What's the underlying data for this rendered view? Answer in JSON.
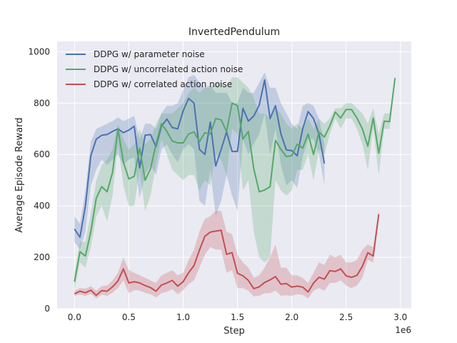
{
  "chart_data": {
    "type": "line",
    "title": "InvertedPendulum",
    "xlabel": "Step",
    "ylabel": "Average Episode Reward",
    "x_offset_label": "1e6",
    "xlim": [
      -0.16,
      3.1
    ],
    "ylim": [
      0,
      1040
    ],
    "x_ticks": [
      0.0,
      0.5,
      1.0,
      1.5,
      2.0,
      2.5,
      3.0
    ],
    "x_tick_labels": [
      "0.0",
      "0.5",
      "1.0",
      "1.5",
      "2.0",
      "2.5",
      "3.0"
    ],
    "y_ticks": [
      0,
      200,
      400,
      600,
      800,
      1000
    ],
    "y_tick_labels": [
      "0",
      "200",
      "400",
      "600",
      "800",
      "1000"
    ],
    "grid": true,
    "legend_position": "top-left",
    "colors": {
      "background": "#eaeaf2",
      "grid": "#ffffff",
      "blue": "#4c72b0",
      "green": "#55a868",
      "red": "#c44e52"
    },
    "series": [
      {
        "name": "DDPG w/ parameter noise",
        "color": "#4c72b0",
        "x": [
          0.0,
          0.05,
          0.1,
          0.15,
          0.2,
          0.25,
          0.3,
          0.35,
          0.4,
          0.45,
          0.5,
          0.55,
          0.6,
          0.65,
          0.7,
          0.75,
          0.8,
          0.85,
          0.9,
          0.95,
          1.0,
          1.05,
          1.1,
          1.15,
          1.2,
          1.25,
          1.3,
          1.35,
          1.4,
          1.45,
          1.5,
          1.55,
          1.6,
          1.65,
          1.7,
          1.75,
          1.8,
          1.85,
          1.9,
          1.95,
          2.0,
          2.05,
          2.1,
          2.15,
          2.2,
          2.25,
          2.3
        ],
        "y": [
          310,
          278,
          400,
          595,
          660,
          675,
          678,
          690,
          700,
          685,
          695,
          710,
          548,
          675,
          678,
          630,
          710,
          738,
          705,
          700,
          770,
          818,
          800,
          620,
          600,
          726,
          555,
          620,
          688,
          612,
          612,
          780,
          730,
          750,
          792,
          890,
          740,
          790,
          680,
          618,
          615,
          595,
          700,
          767,
          740,
          680,
          565
        ],
        "band_upper": [
          360,
          330,
          460,
          650,
          700,
          710,
          720,
          730,
          745,
          730,
          740,
          750,
          660,
          720,
          720,
          700,
          760,
          790,
          790,
          800,
          850,
          900,
          910,
          880,
          860,
          870,
          840,
          840,
          840,
          800,
          800,
          860,
          840,
          840,
          880,
          920,
          860,
          860,
          800,
          760,
          720,
          700,
          790,
          800,
          790,
          740,
          640
        ],
        "band_lower": [
          260,
          230,
          300,
          480,
          540,
          580,
          560,
          580,
          600,
          560,
          580,
          590,
          430,
          520,
          560,
          520,
          620,
          640,
          600,
          570,
          620,
          640,
          620,
          420,
          400,
          540,
          360,
          420,
          520,
          440,
          380,
          660,
          600,
          640,
          680,
          760,
          600,
          700,
          560,
          480,
          500,
          470,
          590,
          660,
          660,
          600,
          480
        ]
      },
      {
        "name": "DDPG w/ uncorrelated action noise",
        "color": "#55a868",
        "x": [
          0.0,
          0.05,
          0.1,
          0.15,
          0.2,
          0.25,
          0.3,
          0.35,
          0.4,
          0.45,
          0.5,
          0.55,
          0.6,
          0.65,
          0.7,
          0.75,
          0.8,
          0.85,
          0.9,
          0.95,
          1.0,
          1.05,
          1.1,
          1.15,
          1.2,
          1.25,
          1.3,
          1.35,
          1.4,
          1.45,
          1.5,
          1.55,
          1.6,
          1.65,
          1.7,
          1.75,
          1.8,
          1.85,
          1.9,
          1.95,
          2.0,
          2.05,
          2.1,
          2.15,
          2.2,
          2.25,
          2.3,
          2.35,
          2.4,
          2.45,
          2.5,
          2.55,
          2.6,
          2.65,
          2.7,
          2.75,
          2.8,
          2.85,
          2.9,
          2.95
        ],
        "y": [
          105,
          222,
          205,
          300,
          430,
          475,
          455,
          530,
          700,
          570,
          505,
          515,
          625,
          500,
          545,
          640,
          720,
          690,
          652,
          645,
          645,
          680,
          688,
          650,
          685,
          680,
          740,
          735,
          690,
          800,
          790,
          660,
          690,
          545,
          455,
          462,
          475,
          655,
          620,
          592,
          595,
          640,
          625,
          680,
          600,
          688,
          668,
          712,
          765,
          742,
          775,
          775,
          742,
          700,
          632,
          742,
          605,
          730,
          728,
          898
        ],
        "band_upper": [
          140,
          260,
          260,
          370,
          500,
          560,
          580,
          620,
          720,
          660,
          620,
          640,
          700,
          640,
          660,
          720,
          760,
          760,
          760,
          780,
          800,
          840,
          860,
          840,
          860,
          860,
          880,
          880,
          860,
          900,
          900,
          880,
          860,
          820,
          760,
          760,
          740,
          780,
          760,
          720,
          700,
          720,
          700,
          740,
          700,
          740,
          720,
          740,
          780,
          780,
          800,
          800,
          780,
          760,
          720,
          780,
          680,
          760,
          760,
          900
        ],
        "band_lower": [
          70,
          180,
          160,
          240,
          360,
          400,
          340,
          440,
          640,
          480,
          400,
          400,
          540,
          380,
          440,
          560,
          660,
          600,
          540,
          520,
          500,
          520,
          520,
          460,
          500,
          480,
          600,
          580,
          520,
          700,
          680,
          460,
          500,
          300,
          200,
          180,
          200,
          500,
          460,
          440,
          460,
          540,
          540,
          600,
          500,
          620,
          600,
          680,
          740,
          700,
          740,
          740,
          700,
          640,
          540,
          700,
          520,
          700,
          700,
          890
        ]
      },
      {
        "name": "DDPG w/ correlated action noise",
        "color": "#c44e52",
        "x": [
          0.0,
          0.05,
          0.1,
          0.15,
          0.2,
          0.25,
          0.3,
          0.35,
          0.4,
          0.45,
          0.5,
          0.55,
          0.6,
          0.65,
          0.7,
          0.75,
          0.8,
          0.85,
          0.9,
          0.95,
          1.0,
          1.05,
          1.1,
          1.15,
          1.2,
          1.25,
          1.3,
          1.35,
          1.4,
          1.45,
          1.5,
          1.55,
          1.6,
          1.65,
          1.7,
          1.75,
          1.8,
          1.85,
          1.9,
          1.95,
          2.0,
          2.05,
          2.1,
          2.15,
          2.2,
          2.25,
          2.3,
          2.35,
          2.4,
          2.45,
          2.5,
          2.55,
          2.6,
          2.65,
          2.7,
          2.75,
          2.8
        ],
        "y": [
          58,
          68,
          62,
          72,
          52,
          70,
          68,
          85,
          108,
          155,
          100,
          105,
          100,
          90,
          82,
          68,
          92,
          100,
          110,
          88,
          105,
          140,
          168,
          228,
          282,
          298,
          302,
          305,
          212,
          218,
          138,
          128,
          110,
          78,
          85,
          102,
          112,
          125,
          95,
          98,
          84,
          88,
          84,
          65,
          100,
          122,
          115,
          148,
          145,
          155,
          128,
          122,
          130,
          165,
          218,
          205,
          368
        ],
        "band_upper": [
          70,
          80,
          78,
          88,
          70,
          88,
          90,
          110,
          140,
          200,
          150,
          140,
          130,
          120,
          110,
          100,
          130,
          140,
          150,
          130,
          140,
          190,
          230,
          300,
          350,
          360,
          380,
          380,
          300,
          290,
          210,
          180,
          160,
          120,
          130,
          160,
          200,
          250,
          160,
          160,
          130,
          130,
          120,
          100,
          140,
          180,
          170,
          210,
          200,
          210,
          180,
          180,
          190,
          230,
          250,
          240,
          380
        ],
        "band_lower": [
          50,
          55,
          50,
          58,
          40,
          55,
          50,
          62,
          80,
          110,
          60,
          72,
          70,
          62,
          56,
          44,
          60,
          66,
          76,
          56,
          72,
          96,
          110,
          160,
          210,
          240,
          230,
          230,
          140,
          150,
          80,
          80,
          70,
          48,
          50,
          60,
          60,
          70,
          50,
          52,
          50,
          56,
          54,
          40,
          70,
          80,
          70,
          100,
          100,
          110,
          90,
          80,
          90,
          120,
          190,
          180,
          350
        ]
      }
    ]
  }
}
